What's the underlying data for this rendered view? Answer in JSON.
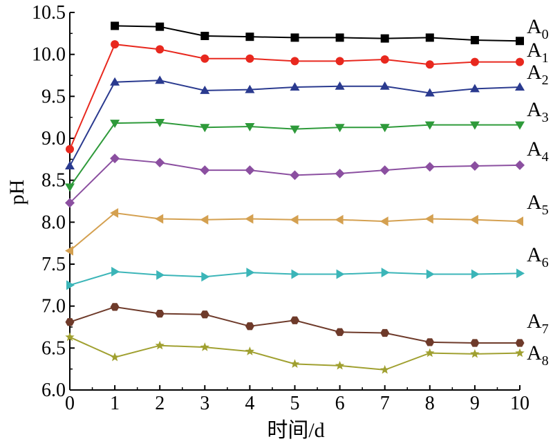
{
  "chart_data": {
    "type": "line",
    "xlabel": "时间/d",
    "ylabel": "pH",
    "xlim": [
      0,
      10
    ],
    "ylim": [
      6.0,
      10.5
    ],
    "x_ticks": [
      "0",
      "1",
      "2",
      "3",
      "4",
      "5",
      "6",
      "7",
      "8",
      "9",
      "10"
    ],
    "y_ticks": [
      "6.0",
      "6.5",
      "7.0",
      "7.5",
      "8.0",
      "8.5",
      "9.0",
      "9.5",
      "10.0",
      "10.5"
    ],
    "grid": false,
    "series": [
      {
        "name": "A",
        "sub": "0",
        "color": "#000000",
        "marker": "square",
        "x": [
          1,
          2,
          3,
          4,
          5,
          6,
          7,
          8,
          9,
          10
        ],
        "values": [
          10.34,
          10.33,
          10.22,
          10.21,
          10.2,
          10.2,
          10.19,
          10.2,
          10.17,
          10.16
        ]
      },
      {
        "name": "A",
        "sub": "1",
        "color": "#e8281e",
        "marker": "circle",
        "x": [
          0,
          1,
          2,
          3,
          4,
          5,
          6,
          7,
          8,
          9,
          10
        ],
        "values": [
          8.87,
          10.12,
          10.06,
          9.95,
          9.95,
          9.92,
          9.92,
          9.94,
          9.88,
          9.91,
          9.91
        ]
      },
      {
        "name": "A",
        "sub": "2",
        "color": "#2a3a8f",
        "marker": "triangle-up",
        "x": [
          0,
          1,
          2,
          3,
          4,
          5,
          6,
          7,
          8,
          9,
          10
        ],
        "values": [
          8.67,
          9.67,
          9.69,
          9.57,
          9.58,
          9.61,
          9.62,
          9.62,
          9.54,
          9.59,
          9.61
        ]
      },
      {
        "name": "A",
        "sub": "3",
        "color": "#2e9a3a",
        "marker": "triangle-down",
        "x": [
          0,
          1,
          2,
          3,
          4,
          5,
          6,
          7,
          8,
          9,
          10
        ],
        "values": [
          8.42,
          9.18,
          9.19,
          9.13,
          9.14,
          9.11,
          9.13,
          9.13,
          9.16,
          9.16,
          9.16
        ]
      },
      {
        "name": "A",
        "sub": "4",
        "color": "#8b4fa0",
        "marker": "diamond",
        "x": [
          0,
          1,
          2,
          3,
          4,
          5,
          6,
          7,
          8,
          9,
          10
        ],
        "values": [
          8.23,
          8.76,
          8.71,
          8.62,
          8.62,
          8.56,
          8.58,
          8.62,
          8.66,
          8.67,
          8.68
        ]
      },
      {
        "name": "A",
        "sub": "5",
        "color": "#d4a050",
        "marker": "triangle-left",
        "x": [
          0,
          1,
          2,
          3,
          4,
          5,
          6,
          7,
          8,
          9,
          10
        ],
        "values": [
          7.66,
          8.11,
          8.04,
          8.03,
          8.04,
          8.03,
          8.03,
          8.01,
          8.04,
          8.03,
          8.01
        ]
      },
      {
        "name": "A",
        "sub": "6",
        "color": "#3bb5b8",
        "marker": "triangle-right",
        "x": [
          0,
          1,
          2,
          3,
          4,
          5,
          6,
          7,
          8,
          9,
          10
        ],
        "values": [
          7.25,
          7.41,
          7.37,
          7.35,
          7.4,
          7.38,
          7.38,
          7.4,
          7.38,
          7.38,
          7.39
        ]
      },
      {
        "name": "A",
        "sub": "7",
        "color": "#6e3a2a",
        "marker": "hexagon",
        "x": [
          0,
          1,
          2,
          3,
          4,
          5,
          6,
          7,
          8,
          9,
          10
        ],
        "values": [
          6.81,
          6.99,
          6.91,
          6.9,
          6.76,
          6.83,
          6.69,
          6.68,
          6.57,
          6.56,
          6.56
        ]
      },
      {
        "name": "A",
        "sub": "8",
        "color": "#a0a030",
        "marker": "star",
        "x": [
          0,
          1,
          2,
          3,
          4,
          5,
          6,
          7,
          8,
          9,
          10
        ],
        "values": [
          6.63,
          6.39,
          6.53,
          6.51,
          6.46,
          6.31,
          6.29,
          6.24,
          6.44,
          6.43,
          6.44
        ]
      }
    ]
  }
}
